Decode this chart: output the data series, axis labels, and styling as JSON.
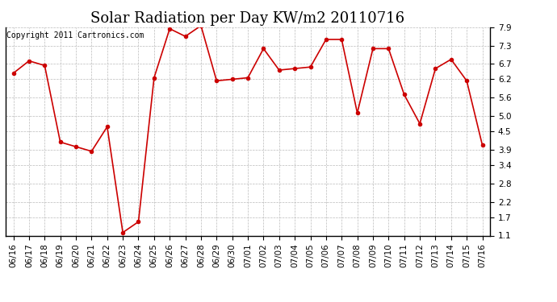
{
  "title": "Solar Radiation per Day KW/m2 20110716",
  "copyright_text": "Copyright 2011 Cartronics.com",
  "dates": [
    "06/16",
    "06/17",
    "06/18",
    "06/19",
    "06/20",
    "06/21",
    "06/22",
    "06/23",
    "06/24",
    "06/25",
    "06/26",
    "06/27",
    "06/28",
    "06/29",
    "06/30",
    "07/01",
    "07/02",
    "07/03",
    "07/04",
    "07/05",
    "07/06",
    "07/07",
    "07/08",
    "07/09",
    "07/10",
    "07/11",
    "07/12",
    "07/13",
    "07/14",
    "07/15",
    "07/16"
  ],
  "values": [
    6.4,
    6.8,
    6.65,
    4.15,
    4.0,
    3.85,
    4.65,
    1.2,
    1.55,
    6.25,
    7.85,
    7.6,
    7.95,
    6.15,
    6.2,
    6.25,
    7.2,
    6.5,
    6.55,
    6.6,
    7.5,
    7.5,
    5.1,
    7.2,
    7.2,
    5.7,
    4.75,
    6.55,
    6.85,
    6.15,
    4.05
  ],
  "line_color": "#cc0000",
  "marker": "o",
  "marker_size": 3,
  "background_color": "#ffffff",
  "plot_bg_color": "#ffffff",
  "grid_color": "#bbbbbb",
  "ylim": [
    1.1,
    7.9
  ],
  "yticks": [
    1.1,
    1.7,
    2.2,
    2.8,
    3.4,
    3.9,
    4.5,
    5.0,
    5.6,
    6.2,
    6.7,
    7.3,
    7.9
  ],
  "title_fontsize": 13,
  "tick_fontsize": 7.5,
  "copyright_fontsize": 7
}
